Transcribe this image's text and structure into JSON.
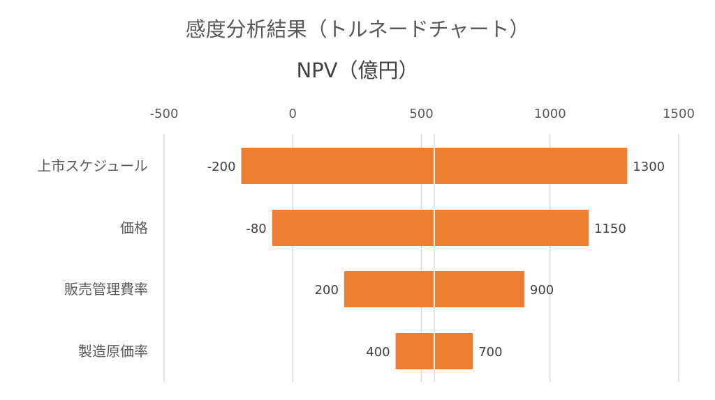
{
  "chart_data": {
    "type": "bar",
    "orientation": "horizontal",
    "title": "感度分析結果（トルネードチャート）",
    "subtitle": "NPV（億円）",
    "categories": [
      "上市スケジュール",
      "価格",
      "販売管理費率",
      "製造原価率"
    ],
    "low_values": [
      -200,
      -80,
      200,
      400
    ],
    "high_values": [
      1300,
      1150,
      900,
      700
    ],
    "base_value": 550,
    "xlim": [
      -500,
      1500
    ],
    "ticks": [
      -500,
      0,
      500,
      1000,
      1500
    ],
    "tick_labels": [
      "-500",
      "0",
      "500",
      "1000",
      "1500"
    ],
    "low_labels": [
      "-200",
      "-80",
      "200",
      "400"
    ],
    "high_labels": [
      "1300",
      "1150",
      "900",
      "700"
    ],
    "grid": true,
    "bar_color": "#ED7D31",
    "grid_color": "#D9D9D9"
  }
}
